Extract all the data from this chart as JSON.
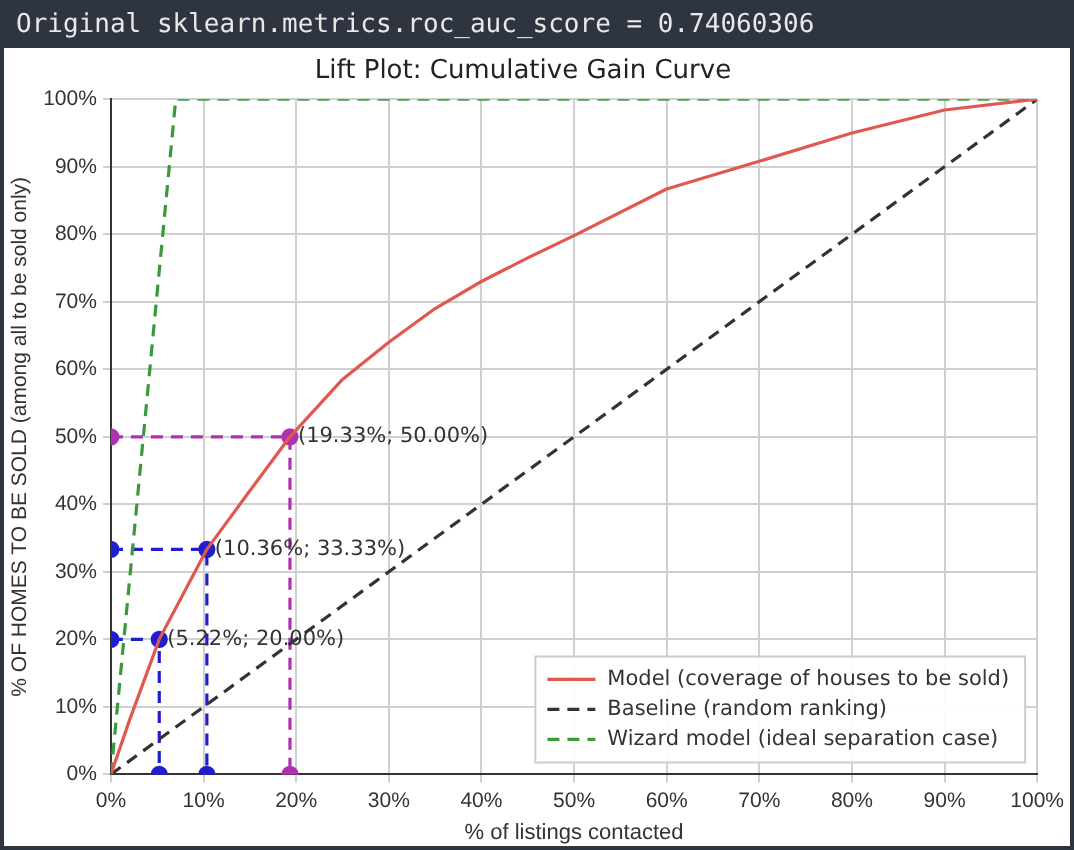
{
  "chart_data": {
    "type": "line",
    "title": "Lift Plot: Cumulative Gain Curve",
    "xlabel": "% of listings contacted",
    "ylabel": "% OF HOMES TO BE SOLD (among all to be sold only)",
    "annotations": [
      "Original sklearn.metrics.roc_auc_score = 0.74060306",
      {
        "text": "(5.22%; 20.00%)",
        "x": 5.22,
        "y": 20
      },
      {
        "text": "(10.36%; 33.33%)",
        "x": 10.36,
        "y": 33.33
      },
      {
        "text": "(19.33%; 50.00%)",
        "x": 19.33,
        "y": 50
      }
    ],
    "series": [
      {
        "name": "Model (coverage of houses to be sold)",
        "color": "#e0584f",
        "line_style": "solid",
        "marker": "none",
        "x": [
          0,
          2,
          5.22,
          10.36,
          15,
          19.33,
          25,
          30,
          35,
          40,
          45,
          50,
          60,
          70,
          80,
          90,
          100
        ],
        "values": [
          0,
          8,
          20,
          33.33,
          42,
          50,
          58.5,
          64,
          69,
          73,
          76.5,
          79.8,
          86.7,
          90.8,
          95,
          98.4,
          100
        ]
      },
      {
        "name": "Baseline (random ranking)",
        "color": "#333333",
        "line_style": "dashed",
        "marker": "none",
        "x": [
          0,
          100
        ],
        "values": [
          0,
          100
        ]
      },
      {
        "name": "Wizard model (ideal separation case)",
        "color": "#3a9a3a",
        "line_style": "dashed",
        "marker": "none",
        "x": [
          0,
          7,
          100
        ],
        "values": [
          0,
          100,
          100
        ]
      },
      {
        "color": "#1f1fd0",
        "line_style": "dashed",
        "marker": "circle",
        "x": [
          0,
          5.22,
          5.22
        ],
        "values": [
          20,
          20,
          0
        ]
      },
      {
        "color": "#1f1fd0",
        "line_style": "dashed",
        "marker": "circle",
        "x": [
          0,
          10.36,
          10.36
        ],
        "values": [
          33.33,
          33.33,
          0
        ]
      },
      {
        "color": "#b030b0",
        "line_style": "dashed",
        "marker": "circle",
        "x": [
          0,
          19.33,
          19.33
        ],
        "values": [
          50,
          50,
          0
        ]
      }
    ],
    "xlim": [
      0,
      100
    ],
    "ylim": [
      0,
      100
    ],
    "xticks": [
      {
        "value": 0,
        "label": "0%"
      },
      {
        "value": 10,
        "label": "10%"
      },
      {
        "value": 20,
        "label": "20%"
      },
      {
        "value": 30,
        "label": "30%"
      },
      {
        "value": 40,
        "label": "40%"
      },
      {
        "value": 50,
        "label": "50%"
      },
      {
        "value": 60,
        "label": "60%"
      },
      {
        "value": 70,
        "label": "70%"
      },
      {
        "value": 80,
        "label": "80%"
      },
      {
        "value": 90,
        "label": "90%"
      },
      {
        "value": 100,
        "label": "100%"
      }
    ],
    "yticks": [
      {
        "value": 0,
        "label": "0%"
      },
      {
        "value": 10,
        "label": "10%"
      },
      {
        "value": 20,
        "label": "20%"
      },
      {
        "value": 30,
        "label": "30%"
      },
      {
        "value": 40,
        "label": "40%"
      },
      {
        "value": 50,
        "label": "50%"
      },
      {
        "value": 60,
        "label": "60%"
      },
      {
        "value": 70,
        "label": "70%"
      },
      {
        "value": 80,
        "label": "80%"
      },
      {
        "value": 90,
        "label": "90%"
      },
      {
        "value": 100,
        "label": "100%"
      }
    ],
    "grid": true,
    "legend": "bottom right"
  }
}
